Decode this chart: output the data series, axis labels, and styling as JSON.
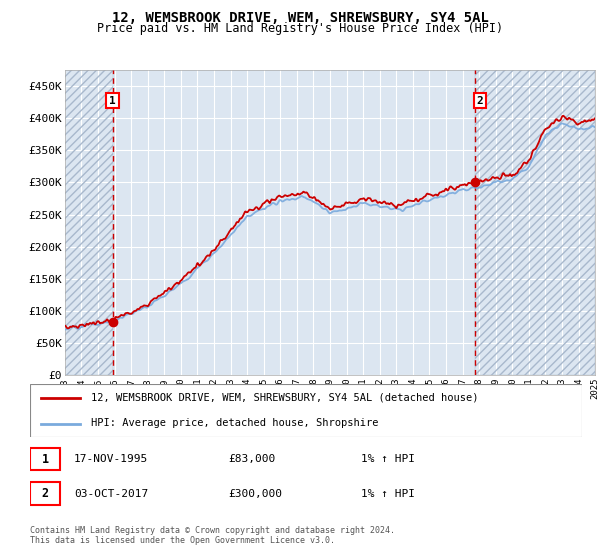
{
  "title1": "12, WEMSBROOK DRIVE, WEM, SHREWSBURY, SY4 5AL",
  "title2": "Price paid vs. HM Land Registry's House Price Index (HPI)",
  "ylim": [
    0,
    475000
  ],
  "yticks": [
    0,
    50000,
    100000,
    150000,
    200000,
    250000,
    300000,
    350000,
    400000,
    450000
  ],
  "ytick_labels": [
    "£0",
    "£50K",
    "£100K",
    "£150K",
    "£200K",
    "£250K",
    "£300K",
    "£350K",
    "£400K",
    "£450K"
  ],
  "xmin": 1993,
  "xmax": 2025,
  "sale1_date": 1995.88,
  "sale1_price": 83000,
  "sale2_date": 2017.75,
  "sale2_price": 300000,
  "hpi_color": "#7aaadd",
  "price_color": "#cc0000",
  "vline_color": "#cc0000",
  "bg_color": "#dce6f1",
  "grid_color": "#ffffff",
  "legend_label1": "12, WEMSBROOK DRIVE, WEM, SHREWSBURY, SY4 5AL (detached house)",
  "legend_label2": "HPI: Average price, detached house, Shropshire",
  "note1_date": "17-NOV-1995",
  "note1_price": "£83,000",
  "note1_hpi": "1% ↑ HPI",
  "note2_date": "03-OCT-2017",
  "note2_price": "£300,000",
  "note2_hpi": "1% ↑ HPI",
  "footer": "Contains HM Land Registry data © Crown copyright and database right 2024.\nThis data is licensed under the Open Government Licence v3.0."
}
